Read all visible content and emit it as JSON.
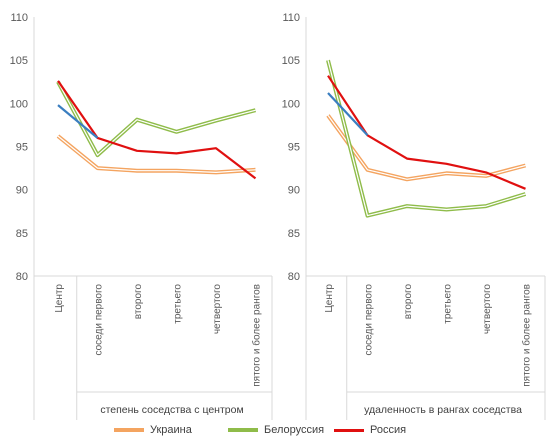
{
  "chart_data": [
    {
      "type": "line",
      "x": [
        "Центр",
        "соседи первого",
        "второго",
        "третьего",
        "четвертого",
        "пятого и более рангов"
      ],
      "group_label": "степень соседства с центром",
      "ylim": [
        80,
        110
      ],
      "yticks": [
        80,
        85,
        90,
        95,
        100,
        105,
        110
      ],
      "grid": false,
      "series": [
        {
          "name": "Украина",
          "color": "#f4a460",
          "values": [
            96.2,
            92.5,
            92.2,
            92.2,
            92.0,
            92.3
          ]
        },
        {
          "name": "Белоруссия",
          "color": "#8fbc4a",
          "values": [
            102.5,
            94.0,
            98.1,
            96.7,
            98.0,
            99.2
          ]
        },
        {
          "name": "Россия",
          "color": "#e01010",
          "values": [
            102.6,
            96.0,
            94.5,
            94.2,
            94.8,
            91.3
          ]
        },
        {
          "name": "",
          "color": "#3a7ec0",
          "values": [
            99.8,
            96.0,
            null,
            null,
            null,
            null
          ]
        }
      ]
    },
    {
      "type": "line",
      "x": [
        "Центр",
        "соседи первого",
        "второго",
        "третьего",
        "четвертого",
        "пятого и более рангов"
      ],
      "group_label": "удаленность в рангах соседства",
      "ylim": [
        80,
        110
      ],
      "yticks": [
        80,
        85,
        90,
        95,
        100,
        105,
        110
      ],
      "grid": false,
      "series": [
        {
          "name": "Украина",
          "color": "#f4a460",
          "values": [
            98.6,
            92.3,
            91.2,
            91.9,
            91.6,
            92.8
          ]
        },
        {
          "name": "Белоруссия",
          "color": "#8fbc4a",
          "values": [
            105.0,
            87.0,
            88.1,
            87.7,
            88.1,
            89.5
          ]
        },
        {
          "name": "Россия",
          "color": "#e01010",
          "values": [
            103.2,
            96.3,
            93.6,
            93.0,
            92.0,
            90.1
          ]
        },
        {
          "name": "",
          "color": "#3a7ec0",
          "values": [
            101.2,
            96.3,
            null,
            null,
            null,
            null
          ]
        }
      ]
    }
  ],
  "legend": [
    {
      "name": "Украина",
      "color": "#f4a460",
      "double": true
    },
    {
      "name": "Белоруссия",
      "color": "#8fbc4a",
      "double": true
    },
    {
      "name": "Россия",
      "color": "#e01010",
      "double": false
    }
  ]
}
